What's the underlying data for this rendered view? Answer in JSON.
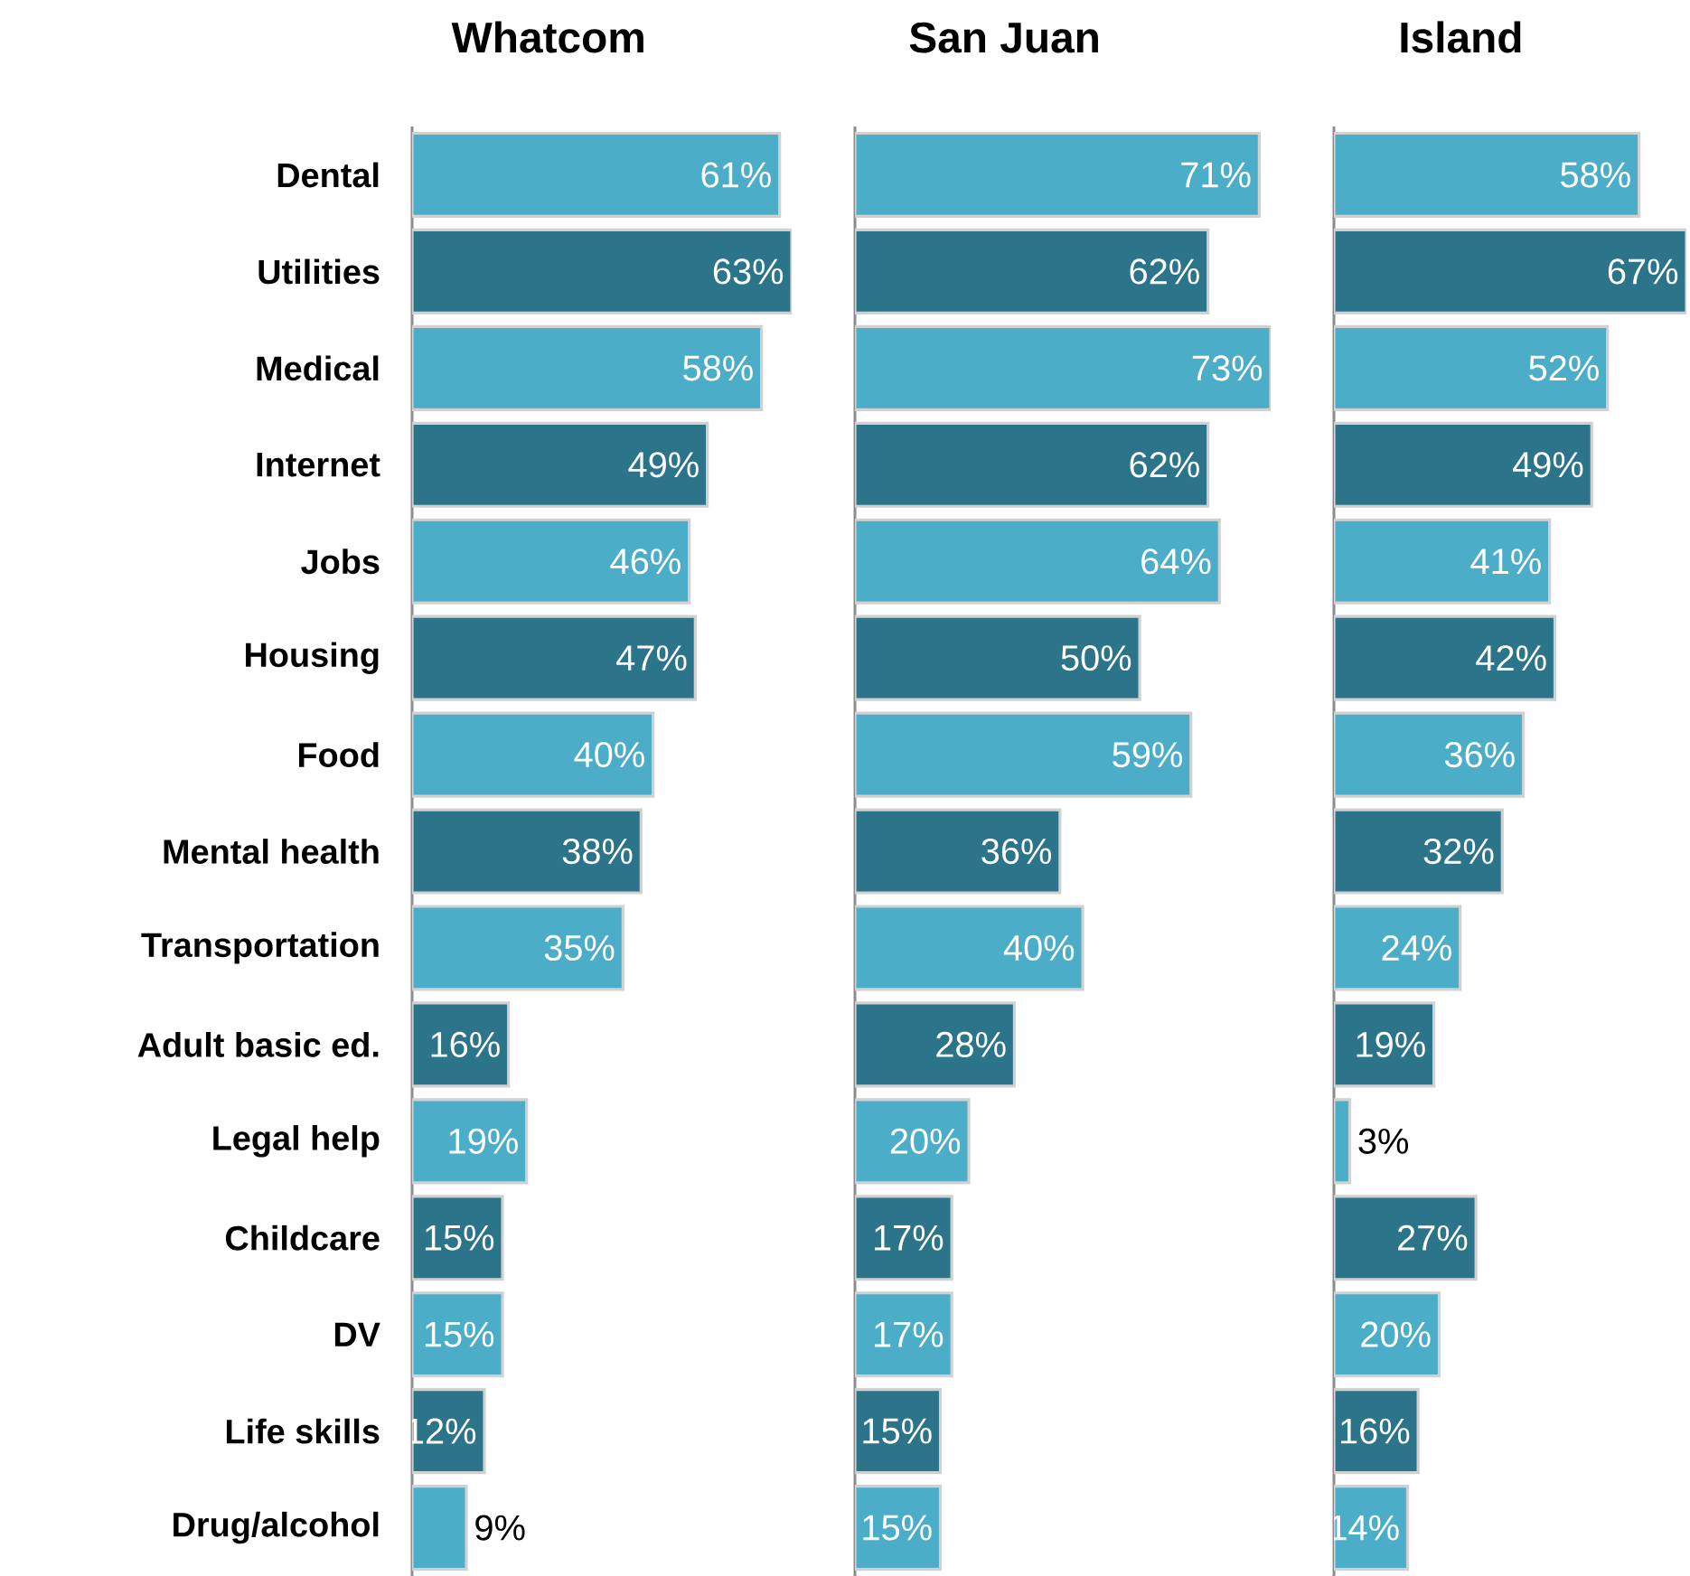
{
  "chart_data": [
    {
      "type": "bar",
      "orientation": "horizontal",
      "title": "Whatcom",
      "tick_labels": "y",
      "categories": [
        "Dental",
        "Utilities",
        "Medical",
        "Internet",
        "Jobs",
        "Housing",
        "Food",
        "Mental health",
        "Transportation",
        "Adult basic ed.",
        "Legal help",
        "Childcare",
        "DV",
        "Life skills",
        "Drug/alcohol"
      ],
      "values": [
        61,
        63,
        58,
        49,
        46,
        47,
        40,
        38,
        35,
        16,
        19,
        15,
        15,
        12,
        9
      ],
      "value_labels": [
        "61%",
        "63%",
        "58%",
        "49%",
        "46%",
        "47%",
        "40%",
        "38%",
        "35%",
        "16%",
        "19%",
        "15%",
        "15%",
        "12%",
        "9%"
      ],
      "colors": [
        "#4badc8",
        "#2c7489",
        "#4badc8",
        "#2c7489",
        "#4badc8",
        "#2c7489",
        "#4badc8",
        "#2c7489",
        "#4badc8",
        "#2c7489",
        "#4badc8",
        "#2c7489",
        "#4badc8",
        "#2c7489",
        "#4badc8"
      ]
    },
    {
      "type": "bar",
      "orientation": "horizontal",
      "title": "San Juan",
      "tick_labels": false,
      "categories": [
        null,
        null,
        null,
        null,
        null,
        null,
        null,
        null,
        null,
        null,
        null,
        null,
        null,
        null,
        null
      ],
      "values": [
        71,
        62,
        73,
        62,
        64,
        50,
        59,
        36,
        40,
        28,
        20,
        17,
        17,
        15,
        15
      ],
      "value_labels": [
        "71%",
        "62%",
        "73%",
        "62%",
        "64%",
        "50%",
        "59%",
        "36%",
        "40%",
        "28%",
        "20%",
        "17%",
        "17%",
        "15%",
        "15%"
      ],
      "colors": [
        "#4badc8",
        "#2c7489",
        "#4badc8",
        "#2c7489",
        "#4badc8",
        "#2c7489",
        "#4badc8",
        "#2c7489",
        "#4badc8",
        "#2c7489",
        "#4badc8",
        "#2c7489",
        "#4badc8",
        "#2c7489",
        "#4badc8"
      ]
    },
    {
      "type": "bar",
      "orientation": "horizontal",
      "title": "Island",
      "tick_labels": false,
      "categories": [
        null,
        null,
        null,
        null,
        null,
        null,
        null,
        null,
        null,
        null,
        null,
        null,
        null,
        null,
        null
      ],
      "values": [
        58,
        67,
        52,
        49,
        41,
        42,
        36,
        32,
        24,
        19,
        3,
        27,
        20,
        16,
        14
      ],
      "value_labels": [
        "58%",
        "67%",
        "52%",
        "49%",
        "41%",
        "42%",
        "36%",
        "32%",
        "24%",
        "19%",
        "3%",
        "27%",
        "20%",
        "16%",
        "14%"
      ],
      "colors": [
        "#4badc8",
        "#2c7489",
        "#4badc8",
        "#2c7489",
        "#4badc8",
        "#2c7489",
        "#4badc8",
        "#2c7489",
        "#4badc8",
        "#2c7489",
        "#4badc8",
        "#2c7489",
        "#4badc8",
        "#2c7489",
        "#4badc8"
      ]
    }
  ]
}
